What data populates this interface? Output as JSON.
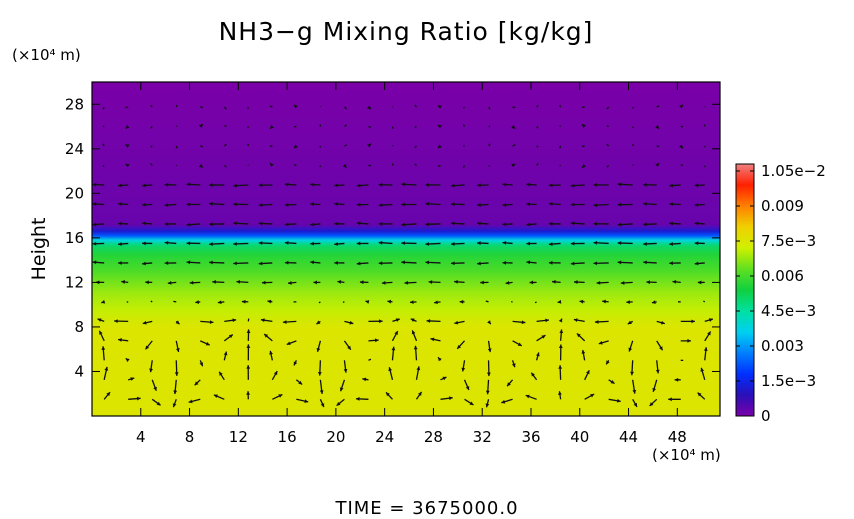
{
  "chart_data": {
    "type": "heatmap",
    "title": "NH3−g Mixing Ratio [kg/kg]",
    "ylabel": "Height",
    "x_unit": "(×10⁴ m)",
    "y_unit": "(×10⁴ m)",
    "xlim": [
      0,
      51.5
    ],
    "ylim": [
      0,
      30
    ],
    "x_ticks": [
      4,
      8,
      12,
      16,
      20,
      24,
      28,
      32,
      36,
      40,
      44,
      48
    ],
    "y_ticks": [
      4,
      8,
      12,
      16,
      20,
      24,
      28
    ],
    "colorbar": {
      "range": [
        0,
        0.0108
      ],
      "ticks": [
        {
          "value": 0,
          "label": "0"
        },
        {
          "value": 0.0015,
          "label": "1.5e−3"
        },
        {
          "value": 0.003,
          "label": "0.003"
        },
        {
          "value": 0.0045,
          "label": "4.5e−3"
        },
        {
          "value": 0.006,
          "label": "0.006"
        },
        {
          "value": 0.0075,
          "label": "7.5e−3"
        },
        {
          "value": 0.009,
          "label": "0.009"
        },
        {
          "value": 0.0105,
          "label": "1.05e−2"
        }
      ],
      "stops": [
        "#7a00a8",
        "#2a10b8",
        "#0030ff",
        "#0080ff",
        "#00d0f0",
        "#00e0a0",
        "#10d040",
        "#60e020",
        "#d0f000",
        "#f0d000",
        "#ff8000",
        "#ff2000",
        "#f08080"
      ]
    },
    "field_profile": {
      "height": [
        0,
        8,
        9.5,
        11,
        13,
        14.5,
        15.3,
        15.8,
        16.2,
        16.6,
        17.2,
        30
      ],
      "mixing_ratio": [
        0.0075,
        0.0075,
        0.0071,
        0.0068,
        0.0061,
        0.0056,
        0.005,
        0.0038,
        0.0022,
        0.0012,
        0.0002,
        0.0
      ]
    },
    "annotation": "TIME  =  3675000.0",
    "vector_field": "wind vectors overlaid"
  }
}
